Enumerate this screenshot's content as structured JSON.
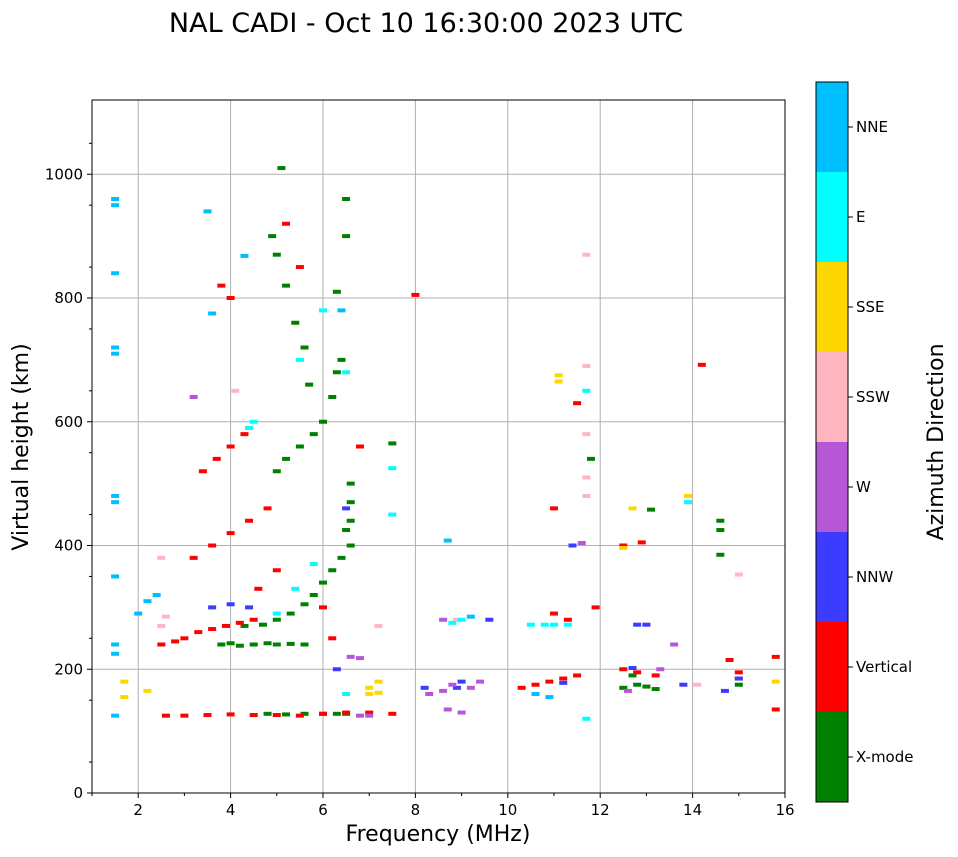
{
  "chart_data": {
    "type": "scatter",
    "title": "NAL CADI - Oct 10 16:30:00 2023 UTC",
    "xlabel": "Frequency (MHz)",
    "ylabel": "Virtual height (km)",
    "xlim": [
      1,
      16
    ],
    "ylim": [
      0,
      1120
    ],
    "xticks": [
      2,
      4,
      6,
      8,
      10,
      12,
      14,
      16
    ],
    "yticks": [
      0,
      200,
      400,
      600,
      800,
      1000
    ],
    "grid": true,
    "colorbar": {
      "label": "Azimuth Direction",
      "categories": [
        {
          "name": "X-mode",
          "color": "#008000"
        },
        {
          "name": "Vertical",
          "color": "#ff0000"
        },
        {
          "name": "NNW",
          "color": "#3c3cff"
        },
        {
          "name": "W",
          "color": "#b657d6"
        },
        {
          "name": "SSW",
          "color": "#ffb6c1"
        },
        {
          "name": "SSE",
          "color": "#ffd700"
        },
        {
          "name": "E",
          "color": "#00ffff"
        },
        {
          "name": "NNE",
          "color": "#00bfff"
        }
      ]
    },
    "series": [
      {
        "name": "X-mode",
        "points": [
          [
            3.8,
            240
          ],
          [
            4.0,
            242
          ],
          [
            4.2,
            238
          ],
          [
            4.5,
            240
          ],
          [
            4.8,
            242
          ],
          [
            5.0,
            240
          ],
          [
            5.3,
            241
          ],
          [
            5.6,
            240
          ],
          [
            4.3,
            270
          ],
          [
            4.7,
            272
          ],
          [
            5.0,
            280
          ],
          [
            5.3,
            290
          ],
          [
            5.6,
            305
          ],
          [
            5.8,
            320
          ],
          [
            6.0,
            340
          ],
          [
            6.2,
            360
          ],
          [
            6.4,
            380
          ],
          [
            6.6,
            400
          ],
          [
            6.5,
            425
          ],
          [
            4.8,
            128
          ],
          [
            5.2,
            127
          ],
          [
            5.6,
            128
          ],
          [
            6.0,
            128
          ],
          [
            6.3,
            128
          ],
          [
            6.5,
            128
          ],
          [
            5.0,
            520
          ],
          [
            5.2,
            540
          ],
          [
            5.5,
            560
          ],
          [
            5.8,
            580
          ],
          [
            6.0,
            600
          ],
          [
            6.2,
            640
          ],
          [
            6.3,
            680
          ],
          [
            6.4,
            700
          ],
          [
            6.3,
            810
          ],
          [
            6.5,
            900
          ],
          [
            6.5,
            960
          ],
          [
            5.1,
            1010
          ],
          [
            5.0,
            870
          ],
          [
            4.9,
            900
          ],
          [
            5.2,
            820
          ],
          [
            5.4,
            760
          ],
          [
            5.6,
            720
          ],
          [
            5.7,
            660
          ],
          [
            12.5,
            170
          ],
          [
            12.8,
            175
          ],
          [
            13.0,
            172
          ],
          [
            13.2,
            168
          ],
          [
            12.7,
            190
          ],
          [
            14.6,
            440
          ],
          [
            14.6,
            425
          ],
          [
            14.6,
            385
          ],
          [
            13.1,
            458
          ],
          [
            11.8,
            540
          ],
          [
            15.0,
            175
          ],
          [
            7.5,
            565
          ],
          [
            6.6,
            440
          ],
          [
            6.6,
            470
          ],
          [
            6.6,
            500
          ]
        ]
      },
      {
        "name": "Vertical",
        "points": [
          [
            2.5,
            240
          ],
          [
            2.8,
            245
          ],
          [
            3.0,
            250
          ],
          [
            3.3,
            260
          ],
          [
            3.6,
            265
          ],
          [
            3.9,
            270
          ],
          [
            4.2,
            275
          ],
          [
            4.5,
            280
          ],
          [
            2.6,
            125
          ],
          [
            3.0,
            125
          ],
          [
            3.5,
            126
          ],
          [
            4.0,
            127
          ],
          [
            4.5,
            126
          ],
          [
            5.0,
            126
          ],
          [
            5.5,
            125
          ],
          [
            6.0,
            128
          ],
          [
            6.5,
            130
          ],
          [
            7.0,
            130
          ],
          [
            7.5,
            128
          ],
          [
            3.2,
            380
          ],
          [
            3.6,
            400
          ],
          [
            4.0,
            420
          ],
          [
            4.4,
            440
          ],
          [
            4.8,
            460
          ],
          [
            3.4,
            520
          ],
          [
            3.7,
            540
          ],
          [
            4.0,
            560
          ],
          [
            4.3,
            580
          ],
          [
            3.8,
            820
          ],
          [
            4.0,
            800
          ],
          [
            5.5,
            850
          ],
          [
            5.2,
            920
          ],
          [
            6.0,
            300
          ],
          [
            6.2,
            250
          ],
          [
            10.3,
            170
          ],
          [
            10.6,
            175
          ],
          [
            10.9,
            180
          ],
          [
            11.2,
            185
          ],
          [
            11.5,
            190
          ],
          [
            11.3,
            280
          ],
          [
            11.0,
            290
          ],
          [
            12.5,
            200
          ],
          [
            12.8,
            195
          ],
          [
            13.2,
            190
          ],
          [
            12.9,
            405
          ],
          [
            12.5,
            400
          ],
          [
            14.2,
            692
          ],
          [
            14.8,
            215
          ],
          [
            15.0,
            195
          ],
          [
            15.0,
            185
          ],
          [
            15.8,
            220
          ],
          [
            15.8,
            135
          ],
          [
            11.0,
            460
          ],
          [
            11.5,
            630
          ],
          [
            8.0,
            805
          ],
          [
            11.9,
            300
          ],
          [
            6.8,
            560
          ],
          [
            4.6,
            330
          ],
          [
            5.0,
            360
          ]
        ]
      },
      {
        "name": "NNW",
        "points": [
          [
            12.8,
            272
          ],
          [
            13.0,
            272
          ],
          [
            12.7,
            202
          ],
          [
            11.2,
            178
          ],
          [
            9.0,
            180
          ],
          [
            8.9,
            170
          ],
          [
            8.2,
            170
          ],
          [
            14.7,
            165
          ],
          [
            15.0,
            185
          ],
          [
            13.8,
            175
          ],
          [
            6.5,
            460
          ],
          [
            6.3,
            200
          ],
          [
            11.4,
            400
          ],
          [
            9.6,
            280
          ],
          [
            4.0,
            305
          ],
          [
            4.4,
            300
          ],
          [
            3.6,
            300
          ]
        ]
      },
      {
        "name": "W",
        "points": [
          [
            8.7,
            135
          ],
          [
            9.0,
            130
          ],
          [
            8.3,
            160
          ],
          [
            8.6,
            165
          ],
          [
            8.8,
            175
          ],
          [
            9.2,
            170
          ],
          [
            6.8,
            125
          ],
          [
            7.0,
            125
          ],
          [
            6.8,
            218
          ],
          [
            6.6,
            220
          ],
          [
            9.4,
            180
          ],
          [
            12.6,
            165
          ],
          [
            13.3,
            200
          ],
          [
            13.6,
            240
          ],
          [
            8.6,
            280
          ],
          [
            11.6,
            404
          ],
          [
            3.2,
            640
          ]
        ]
      },
      {
        "name": "SSW",
        "points": [
          [
            2.5,
            270
          ],
          [
            2.6,
            285
          ],
          [
            2.5,
            380
          ],
          [
            8.9,
            280
          ],
          [
            15.0,
            353
          ],
          [
            14.1,
            175
          ],
          [
            11.7,
            870
          ],
          [
            11.7,
            690
          ],
          [
            11.7,
            580
          ],
          [
            11.7,
            510
          ],
          [
            11.7,
            480
          ],
          [
            7.2,
            270
          ],
          [
            4.1,
            650
          ]
        ]
      },
      {
        "name": "SSE",
        "points": [
          [
            11.1,
            675
          ],
          [
            11.1,
            665
          ],
          [
            13.9,
            480
          ],
          [
            12.7,
            460
          ],
          [
            12.5,
            396
          ],
          [
            7.0,
            170
          ],
          [
            7.0,
            160
          ],
          [
            7.2,
            162
          ],
          [
            7.2,
            180
          ],
          [
            1.7,
            180
          ],
          [
            1.7,
            155
          ],
          [
            2.2,
            165
          ],
          [
            15.8,
            180
          ]
        ]
      },
      {
        "name": "E",
        "points": [
          [
            10.5,
            272
          ],
          [
            10.8,
            272
          ],
          [
            11.0,
            272
          ],
          [
            11.3,
            272
          ],
          [
            9.0,
            280
          ],
          [
            8.8,
            275
          ],
          [
            4.4,
            590
          ],
          [
            4.5,
            600
          ],
          [
            6.0,
            780
          ],
          [
            5.5,
            700
          ],
          [
            11.7,
            120
          ],
          [
            11.7,
            650
          ],
          [
            13.9,
            470
          ],
          [
            5.0,
            290
          ],
          [
            5.4,
            330
          ],
          [
            5.8,
            370
          ],
          [
            6.5,
            160
          ],
          [
            7.5,
            525
          ],
          [
            7.5,
            450
          ],
          [
            6.5,
            680
          ]
        ]
      },
      {
        "name": "NNE",
        "points": [
          [
            1.5,
            960
          ],
          [
            1.5,
            950
          ],
          [
            1.5,
            840
          ],
          [
            1.5,
            720
          ],
          [
            1.5,
            710
          ],
          [
            1.5,
            480
          ],
          [
            1.5,
            470
          ],
          [
            1.5,
            350
          ],
          [
            1.5,
            240
          ],
          [
            1.5,
            225
          ],
          [
            1.5,
            125
          ],
          [
            2.0,
            290
          ],
          [
            2.2,
            310
          ],
          [
            2.4,
            320
          ],
          [
            3.5,
            940
          ],
          [
            10.6,
            160
          ],
          [
            10.9,
            155
          ],
          [
            9.2,
            285
          ],
          [
            8.7,
            408
          ],
          [
            4.3,
            868
          ],
          [
            3.6,
            775
          ],
          [
            6.4,
            780
          ]
        ]
      }
    ]
  }
}
